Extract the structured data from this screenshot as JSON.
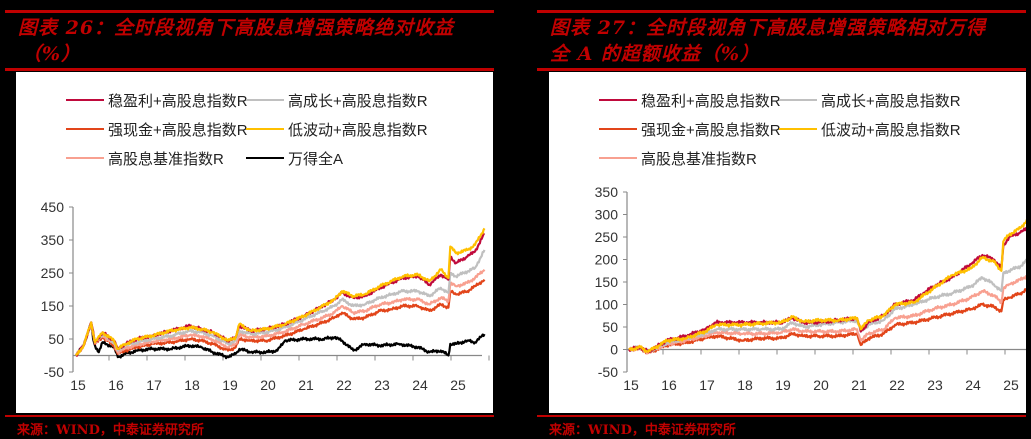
{
  "charts": [
    {
      "title_line1": "图表 26：全时段视角下高股息增强策略绝对收益",
      "title_line2": "（%）",
      "source": "来源：WIND，中泰证券研究所"
    },
    {
      "title_line1": "图表 27：全时段视角下高股息增强策略相对万得",
      "title_line2": "全 A 的超额收益（%）",
      "source": "来源：WIND，中泰证券研究所"
    }
  ],
  "chart_data": [
    {
      "type": "line",
      "title": "图表 26：全时段视角下高股息增强策略绝对收益（%）",
      "xlabel": "",
      "ylabel": "",
      "x_ticks": [
        "15",
        "16",
        "17",
        "18",
        "19",
        "20",
        "21",
        "22",
        "23",
        "24",
        "25"
      ],
      "y_ticks": [
        450,
        350,
        250,
        150,
        50,
        -50
      ],
      "ylim": [
        -50,
        450
      ],
      "xlim": [
        15,
        25.75
      ],
      "grid": false,
      "legend_position": "top",
      "legend": [
        "稳盈利+高股息指数R",
        "高成长+高股息指数R",
        "强现金+高股息指数R",
        "低波动+高股息指数R",
        "高股息基准指数R",
        "万得全A"
      ],
      "series": [
        {
          "name": "稳盈利+高股息指数R",
          "color": "#c00a3c",
          "x": [
            15,
            15.2,
            15.4,
            15.5,
            15.7,
            16,
            16.1,
            16.3,
            16.6,
            17,
            17.5,
            18,
            18.3,
            18.6,
            19,
            19.2,
            19.3,
            19.6,
            20,
            20.5,
            21,
            21.5,
            21.8,
            22,
            22.3,
            22.6,
            23,
            23.3,
            23.6,
            24,
            24.3,
            24.6,
            24.8,
            24.85,
            25,
            25.3,
            25.5,
            25.75
          ],
          "y": [
            0,
            30,
            100,
            40,
            70,
            45,
            20,
            35,
            50,
            60,
            75,
            90,
            80,
            70,
            45,
            55,
            90,
            75,
            80,
            95,
            120,
            150,
            170,
            190,
            175,
            180,
            205,
            220,
            235,
            240,
            215,
            245,
            230,
            300,
            280,
            300,
            315,
            370
          ]
        },
        {
          "name": "高成长+高股息指数R",
          "color": "#c0c0c0",
          "x": [
            15,
            15.2,
            15.4,
            15.5,
            15.7,
            16,
            16.1,
            16.3,
            16.6,
            17,
            17.5,
            18,
            18.3,
            18.6,
            19,
            19.2,
            19.3,
            19.6,
            20,
            20.5,
            21,
            21.5,
            21.8,
            22,
            22.3,
            22.6,
            23,
            23.3,
            23.6,
            24,
            24.3,
            24.6,
            24.8,
            24.85,
            25,
            25.3,
            25.5,
            25.75
          ],
          "y": [
            0,
            30,
            100,
            40,
            65,
            40,
            15,
            30,
            40,
            50,
            60,
            75,
            70,
            60,
            35,
            45,
            75,
            65,
            70,
            85,
            110,
            135,
            150,
            170,
            150,
            155,
            175,
            185,
            195,
            195,
            180,
            205,
            190,
            250,
            240,
            255,
            265,
            320
          ]
        },
        {
          "name": "强现金+高股息指数R",
          "color": "#e2451a",
          "x": [
            15,
            15.2,
            15.4,
            15.5,
            15.7,
            16,
            16.1,
            16.3,
            16.6,
            17,
            17.5,
            18,
            18.3,
            18.6,
            19,
            19.2,
            19.3,
            19.6,
            20,
            20.5,
            21,
            21.5,
            21.8,
            22,
            22.3,
            22.6,
            23,
            23.3,
            23.6,
            24,
            24.3,
            24.6,
            24.8,
            24.85,
            25,
            25.3,
            25.5,
            25.75
          ],
          "y": [
            0,
            30,
            100,
            35,
            55,
            30,
            5,
            15,
            25,
            35,
            40,
            50,
            45,
            35,
            15,
            25,
            50,
            45,
            45,
            60,
            80,
            100,
            115,
            130,
            110,
            115,
            135,
            140,
            150,
            150,
            135,
            155,
            145,
            195,
            185,
            195,
            210,
            230
          ]
        },
        {
          "name": "低波动+高股息指数R",
          "color": "#ffc000",
          "x": [
            15,
            15.2,
            15.4,
            15.5,
            15.7,
            16,
            16.1,
            16.3,
            16.6,
            17,
            17.5,
            18,
            18.3,
            18.6,
            19,
            19.2,
            19.3,
            19.6,
            20,
            20.5,
            21,
            21.5,
            21.8,
            22,
            22.3,
            22.6,
            23,
            23.3,
            23.6,
            24,
            24.3,
            24.6,
            24.8,
            24.85,
            25,
            25.3,
            25.5,
            25.75
          ],
          "y": [
            0,
            30,
            100,
            40,
            70,
            45,
            20,
            35,
            50,
            60,
            75,
            85,
            80,
            70,
            45,
            55,
            95,
            75,
            80,
            95,
            120,
            150,
            170,
            195,
            180,
            185,
            210,
            225,
            240,
            245,
            225,
            260,
            235,
            330,
            310,
            320,
            335,
            385
          ]
        },
        {
          "name": "高股息基准指数R",
          "color": "#f8a090",
          "x": [
            15,
            15.2,
            15.4,
            15.5,
            15.7,
            16,
            16.1,
            16.3,
            16.6,
            17,
            17.5,
            18,
            18.3,
            18.6,
            19,
            19.2,
            19.3,
            19.6,
            20,
            20.5,
            21,
            21.5,
            21.8,
            22,
            22.3,
            22.6,
            23,
            23.3,
            23.6,
            24,
            24.3,
            24.6,
            24.8,
            24.85,
            25,
            25.3,
            25.5,
            25.75
          ],
          "y": [
            0,
            30,
            100,
            38,
            60,
            35,
            10,
            22,
            32,
            42,
            50,
            62,
            58,
            48,
            25,
            35,
            62,
            55,
            58,
            72,
            95,
            115,
            130,
            150,
            130,
            135,
            155,
            160,
            170,
            170,
            155,
            175,
            165,
            220,
            210,
            220,
            235,
            260
          ]
        },
        {
          "name": "万得全A",
          "color": "#000000",
          "x": [
            15,
            15.2,
            15.4,
            15.45,
            15.5,
            15.6,
            15.7,
            16,
            16.1,
            16.3,
            16.6,
            17,
            17.5,
            18,
            18.3,
            18.6,
            19,
            19.2,
            19.3,
            19.6,
            20,
            20.3,
            20.5,
            21,
            21.5,
            21.8,
            22,
            22.3,
            22.6,
            23,
            23.5,
            24,
            24.3,
            24.6,
            24.8,
            24.85,
            25,
            25.3,
            25.5,
            25.75
          ],
          "y": [
            0,
            30,
            100,
            50,
            30,
            10,
            40,
            25,
            -5,
            5,
            15,
            20,
            20,
            30,
            25,
            10,
            -5,
            5,
            20,
            10,
            10,
            15,
            45,
            50,
            50,
            55,
            45,
            15,
            35,
            30,
            35,
            25,
            10,
            15,
            0,
            35,
            35,
            45,
            40,
            65
          ]
        }
      ]
    },
    {
      "type": "line",
      "title": "图表 27：全时段视角下高股息增强策略相对万得全 A 的超额收益（%）",
      "xlabel": "",
      "ylabel": "",
      "x_ticks": [
        "15",
        "16",
        "17",
        "18",
        "19",
        "20",
        "21",
        "22",
        "23",
        "24",
        "25"
      ],
      "y_ticks": [
        350,
        300,
        250,
        200,
        150,
        100,
        50,
        0,
        -50
      ],
      "ylim": [
        -50,
        350
      ],
      "xlim": [
        15,
        25.75
      ],
      "grid": false,
      "legend_position": "top",
      "legend": [
        "稳盈利+高股息指数R",
        "高成长+高股息指数R",
        "强现金+高股息指数R",
        "低波动+高股息指数R",
        "高股息基准指数R"
      ],
      "series": [
        {
          "name": "稳盈利+高股息指数R",
          "color": "#c00a3c",
          "x": [
            15,
            15.3,
            15.5,
            16,
            16.5,
            17,
            17.3,
            18,
            18.5,
            19,
            19.3,
            19.6,
            20,
            20.5,
            21,
            21.1,
            21.3,
            21.7,
            22,
            22.5,
            23,
            23.5,
            24,
            24.3,
            24.6,
            24.8,
            24.85,
            25,
            25.3,
            25.5,
            25.75
          ],
          "y": [
            0,
            5,
            -5,
            20,
            30,
            45,
            60,
            60,
            60,
            60,
            70,
            60,
            60,
            65,
            70,
            40,
            60,
            75,
            100,
            110,
            140,
            160,
            190,
            210,
            200,
            180,
            230,
            250,
            260,
            270,
            305
          ]
        },
        {
          "name": "高成长+高股息指数R",
          "color": "#c0c0c0",
          "x": [
            15,
            15.3,
            15.5,
            16,
            16.5,
            17,
            17.3,
            18,
            18.5,
            19,
            19.3,
            19.6,
            20,
            20.5,
            21,
            21.1,
            21.3,
            21.7,
            22,
            22.5,
            23,
            23.5,
            24,
            24.3,
            24.6,
            24.8,
            24.85,
            25,
            25.3,
            25.5,
            25.75
          ],
          "y": [
            0,
            5,
            -5,
            15,
            25,
            35,
            45,
            45,
            45,
            45,
            60,
            50,
            55,
            60,
            65,
            40,
            55,
            65,
            90,
            100,
            115,
            125,
            140,
            160,
            145,
            130,
            170,
            175,
            185,
            200,
            250
          ]
        },
        {
          "name": "强现金+高股息指数R",
          "color": "#e2451a",
          "x": [
            15,
            15.3,
            15.5,
            16,
            16.5,
            17,
            17.3,
            18,
            18.5,
            19,
            19.3,
            19.6,
            20,
            20.5,
            21,
            21.1,
            21.3,
            21.7,
            22,
            22.5,
            23,
            23.5,
            24,
            24.3,
            24.6,
            24.8,
            24.85,
            25,
            25.3,
            25.5,
            25.75
          ],
          "y": [
            0,
            3,
            -8,
            10,
            15,
            25,
            30,
            20,
            25,
            25,
            35,
            30,
            30,
            30,
            35,
            10,
            25,
            35,
            55,
            60,
            70,
            80,
            90,
            100,
            95,
            85,
            110,
            115,
            125,
            135,
            165
          ]
        },
        {
          "name": "低波动+高股息指数R",
          "color": "#ffc000",
          "x": [
            15,
            15.3,
            15.5,
            16,
            16.5,
            17,
            17.3,
            18,
            18.5,
            19,
            19.3,
            19.6,
            20,
            20.5,
            21,
            21.1,
            21.3,
            21.7,
            22,
            22.5,
            23,
            23.5,
            24,
            24.3,
            24.6,
            24.8,
            24.85,
            25,
            25.3,
            25.5,
            25.75
          ],
          "y": [
            0,
            5,
            -5,
            20,
            25,
            40,
            55,
            55,
            58,
            60,
            72,
            62,
            65,
            65,
            70,
            45,
            65,
            75,
            100,
            105,
            135,
            165,
            180,
            205,
            195,
            175,
            240,
            255,
            270,
            290,
            320
          ]
        },
        {
          "name": "高股息基准指数R",
          "color": "#f8a090",
          "x": [
            15,
            15.3,
            15.5,
            16,
            16.5,
            17,
            17.3,
            18,
            18.5,
            19,
            19.3,
            19.6,
            20,
            20.5,
            21,
            21.1,
            21.3,
            21.7,
            22,
            22.5,
            23,
            23.5,
            24,
            24.3,
            24.6,
            24.8,
            24.85,
            25,
            25.3,
            25.5,
            25.75
          ],
          "y": [
            0,
            3,
            -6,
            12,
            20,
            30,
            38,
            35,
            35,
            38,
            45,
            40,
            40,
            40,
            45,
            20,
            35,
            45,
            70,
            75,
            90,
            100,
            115,
            130,
            120,
            105,
            135,
            145,
            155,
            165,
            195
          ]
        }
      ]
    }
  ]
}
